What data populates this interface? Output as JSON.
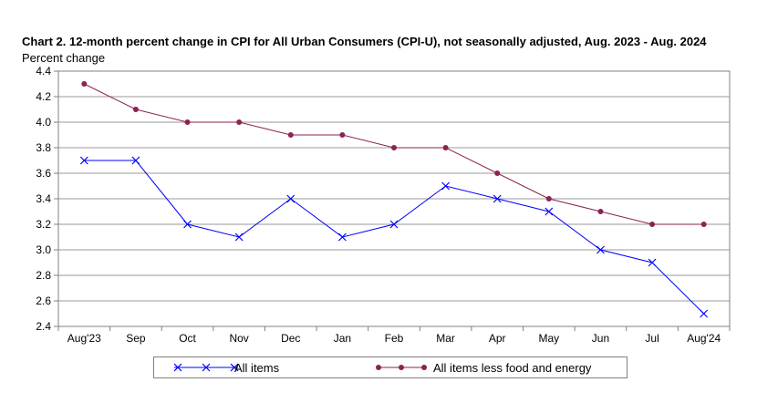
{
  "chart_data": {
    "type": "line",
    "title": "Chart 2. 12-month percent change in CPI for All Urban Consumers (CPI-U), not seasonally adjusted, Aug. 2023 - Aug. 2024",
    "ylabel": "Percent change",
    "xlabel": "",
    "categories": [
      "Aug'23",
      "Sep",
      "Oct",
      "Nov",
      "Dec",
      "Jan",
      "Feb",
      "Mar",
      "Apr",
      "May",
      "Jun",
      "Jul",
      "Aug'24"
    ],
    "ylim": [
      2.4,
      4.4
    ],
    "yticks": [
      "2.4",
      "2.6",
      "2.8",
      "3.0",
      "3.2",
      "3.4",
      "3.6",
      "3.8",
      "4.0",
      "4.2",
      "4.4"
    ],
    "grid": true,
    "legend_position": "bottom",
    "series": [
      {
        "name": "All items",
        "color": "#0000ff",
        "marker": "x",
        "values": [
          3.7,
          3.7,
          3.2,
          3.1,
          3.4,
          3.1,
          3.2,
          3.5,
          3.4,
          3.3,
          3.0,
          2.9,
          2.5
        ]
      },
      {
        "name": "All items less food and energy",
        "color": "#8b2252",
        "marker": "circle",
        "values": [
          4.3,
          4.1,
          4.0,
          4.0,
          3.9,
          3.9,
          3.8,
          3.8,
          3.6,
          3.4,
          3.3,
          3.2,
          3.2
        ]
      }
    ]
  }
}
